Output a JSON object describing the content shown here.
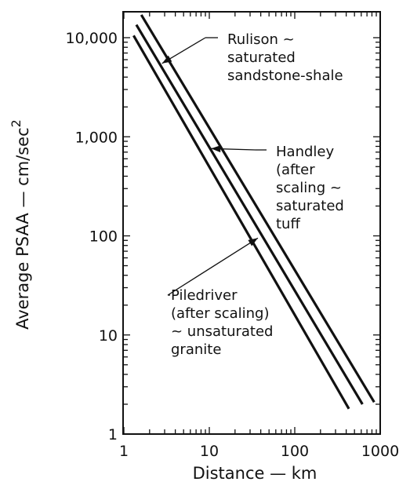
{
  "chart_data": {
    "type": "line",
    "title": "",
    "xlabel": "Distance — km",
    "ylabel_main": "Average PSAA — cm/sec",
    "ylabel_superscript": "2",
    "xscale": "log",
    "yscale": "log",
    "xlim": [
      1,
      1000
    ],
    "ylim": [
      1,
      30000
    ],
    "x_ticks": [
      1,
      10,
      100,
      1000
    ],
    "x_tick_labels": [
      "1",
      "10",
      "100",
      "1000"
    ],
    "y_ticks": [
      1,
      10,
      100,
      1000,
      10000
    ],
    "y_tick_labels": [
      "1",
      "10",
      "100",
      "1,000",
      "10,000"
    ],
    "grid": false,
    "legend": "none",
    "series": [
      {
        "name": "Rulison ~ saturated sandstone-shale",
        "x": [
          1.6,
          850
        ],
        "y": [
          17000,
          2.1
        ]
      },
      {
        "name": "Handley (after scaling ~ saturated tuff",
        "x": [
          1.4,
          620
        ],
        "y": [
          13500,
          2.0
        ]
      },
      {
        "name": "Piledriver (after scaling) ~ unsaturated granite",
        "x": [
          1.3,
          430
        ],
        "y": [
          10500,
          1.8
        ]
      }
    ],
    "annotations": [
      {
        "lines": [
          "Rulison ~",
          "saturated",
          "sandstone-shale"
        ],
        "series": 0,
        "target_x": 2.8,
        "target_y": 5500
      },
      {
        "lines": [
          "Handley",
          "(after",
          "scaling ~",
          "saturated",
          "tuff"
        ],
        "series": 1,
        "target_x": 10.5,
        "target_y": 760
      },
      {
        "lines": [
          "Piledriver",
          "(after scaling)",
          "~ unsaturated",
          "granite"
        ],
        "series": 2,
        "target_x": 37,
        "target_y": 95
      }
    ]
  }
}
